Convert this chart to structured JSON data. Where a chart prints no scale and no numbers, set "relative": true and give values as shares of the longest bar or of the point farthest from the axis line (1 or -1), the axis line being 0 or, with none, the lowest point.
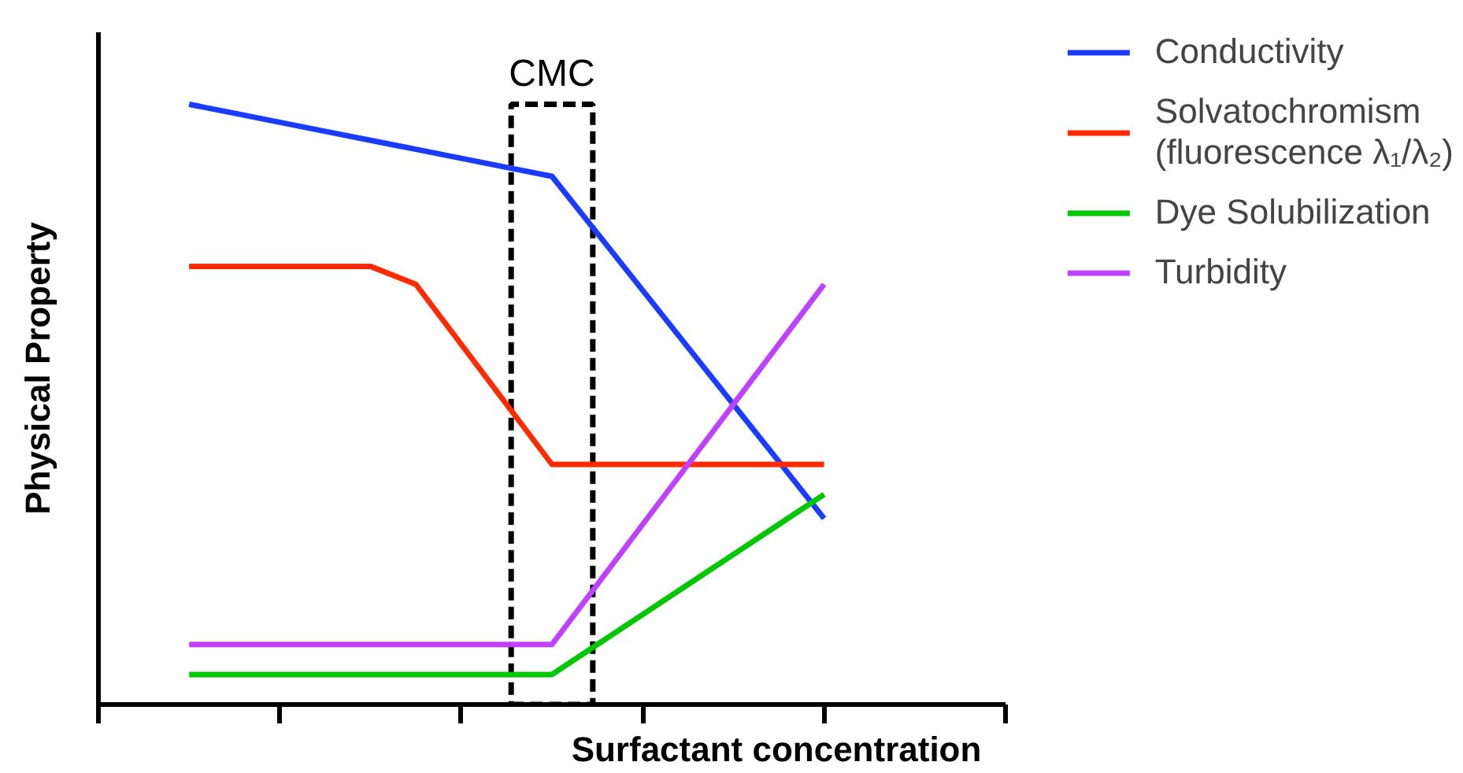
{
  "chart_data": {
    "type": "line",
    "relative": true,
    "xlabel": "Surfactant concentration",
    "ylabel": "Physical Property",
    "categories": [
      null,
      null,
      null,
      null,
      null,
      null,
      null,
      null,
      null,
      null,
      null,
      null,
      null,
      null,
      null
    ],
    "series": [
      {
        "name": "Conductivity",
        "color": "#1a3cff",
        "values": [
          1,
          0.985,
          0.97,
          0.955,
          0.94,
          0.925,
          0.91,
          0.895,
          0.88,
          0.785,
          0.69,
          0.595,
          0.5,
          0.405,
          0.31
        ]
      },
      {
        "name": "Solvatochromism\n(fluorescence λ₁/λ₂)",
        "color": "#ff2a00",
        "values": [
          0.73,
          0.73,
          0.73,
          0.73,
          0.73,
          0.7,
          0.6,
          0.5,
          0.4,
          0.4,
          0.4,
          0.4,
          0.4,
          0.4,
          0.4
        ]
      },
      {
        "name": "Dye Solubilization",
        "color": "#00c800",
        "values": [
          0.05,
          0.05,
          0.05,
          0.05,
          0.05,
          0.05,
          0.05,
          0.05,
          0.05,
          0.1,
          0.15,
          0.2,
          0.25,
          0.3,
          0.35
        ]
      },
      {
        "name": "Turbidity",
        "color": "#c040ff",
        "values": [
          0.1,
          0.1,
          0.1,
          0.1,
          0.1,
          0.1,
          0.1,
          0.1,
          0.1,
          0.2,
          0.3,
          0.4,
          0.5,
          0.6,
          0.7
        ]
      }
    ],
    "annotations": [
      "CMC"
    ],
    "legend": "right",
    "grid": false,
    "marker": "none",
    "line_style": "solid"
  }
}
